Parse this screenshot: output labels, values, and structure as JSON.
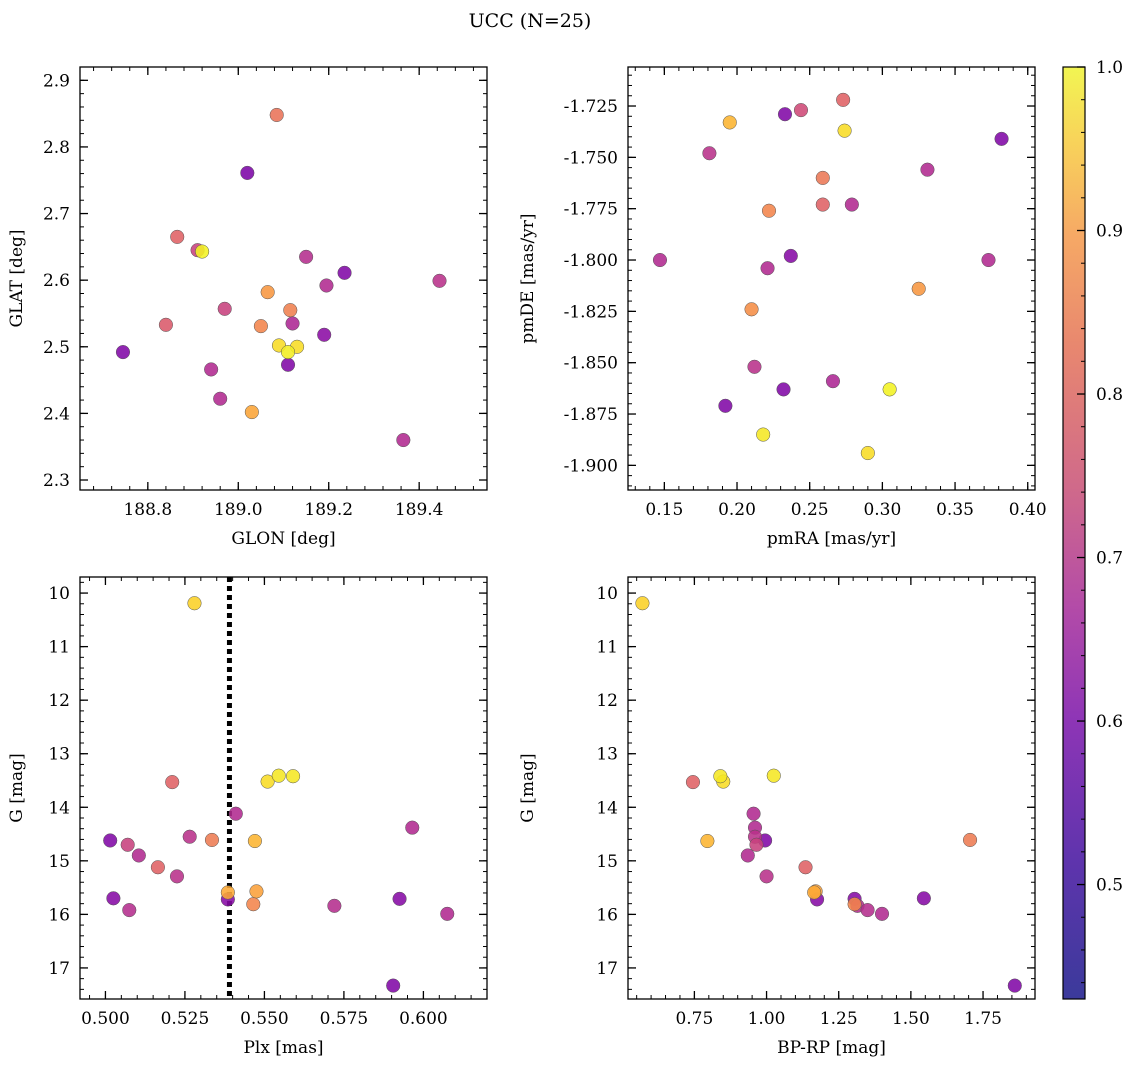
{
  "title": "UCC (N=25)",
  "colors": {
    "colormap": "plasma",
    "point_edge": "#555555",
    "vline": "#000000"
  },
  "colorbar": {
    "min": 0.43,
    "max": 1.0,
    "ticks": [
      "0.5",
      "0.6",
      "0.7",
      "0.8",
      "0.9",
      "1.0"
    ]
  },
  "chart_data": [
    {
      "type": "scatter",
      "xlabel": "GLON [deg]",
      "ylabel": "GLAT [deg]",
      "xlim": [
        188.65,
        189.55
      ],
      "ylim": [
        2.285,
        2.92
      ],
      "xticks": [
        "188.8",
        "189.0",
        "189.2",
        "189.4"
      ],
      "yticks": [
        "2.3",
        "2.4",
        "2.5",
        "2.6",
        "2.7",
        "2.8",
        "2.9"
      ],
      "invert_y": false,
      "points": [
        {
          "x": 188.745,
          "y": 2.492,
          "c": 0.46
        },
        {
          "x": 188.84,
          "y": 2.533,
          "c": 0.68
        },
        {
          "x": 188.865,
          "y": 2.665,
          "c": 0.7
        },
        {
          "x": 188.91,
          "y": 2.645,
          "c": 0.62
        },
        {
          "x": 188.92,
          "y": 2.643,
          "c": 0.99
        },
        {
          "x": 188.94,
          "y": 2.466,
          "c": 0.56
        },
        {
          "x": 188.96,
          "y": 2.422,
          "c": 0.56
        },
        {
          "x": 188.97,
          "y": 2.557,
          "c": 0.62
        },
        {
          "x": 189.02,
          "y": 2.761,
          "c": 0.45
        },
        {
          "x": 189.03,
          "y": 2.402,
          "c": 0.85
        },
        {
          "x": 189.05,
          "y": 2.531,
          "c": 0.78
        },
        {
          "x": 189.065,
          "y": 2.582,
          "c": 0.82
        },
        {
          "x": 189.085,
          "y": 2.848,
          "c": 0.74
        },
        {
          "x": 189.09,
          "y": 2.502,
          "c": 0.95
        },
        {
          "x": 189.11,
          "y": 2.492,
          "c": 0.98
        },
        {
          "x": 189.11,
          "y": 2.473,
          "c": 0.46
        },
        {
          "x": 189.115,
          "y": 2.555,
          "c": 0.77
        },
        {
          "x": 189.12,
          "y": 2.535,
          "c": 0.55
        },
        {
          "x": 189.13,
          "y": 2.5,
          "c": 0.95
        },
        {
          "x": 189.15,
          "y": 2.635,
          "c": 0.57
        },
        {
          "x": 189.19,
          "y": 2.518,
          "c": 0.48
        },
        {
          "x": 189.195,
          "y": 2.592,
          "c": 0.56
        },
        {
          "x": 189.235,
          "y": 2.611,
          "c": 0.46
        },
        {
          "x": 189.365,
          "y": 2.36,
          "c": 0.56
        },
        {
          "x": 189.445,
          "y": 2.599,
          "c": 0.58
        }
      ]
    },
    {
      "type": "scatter",
      "xlabel": "pmRA [mas/yr]",
      "ylabel": "pmDE [mas/yr]",
      "xlim": [
        0.125,
        0.405
      ],
      "ylim": [
        -1.912,
        -1.706
      ],
      "xticks": [
        "0.15",
        "0.20",
        "0.25",
        "0.30",
        "0.35",
        "0.40"
      ],
      "yticks": [
        "-1.725",
        "-1.750",
        "-1.775",
        "-1.800",
        "-1.825",
        "-1.850",
        "-1.875",
        "-1.900"
      ],
      "invert_y": false,
      "points": [
        {
          "x": 0.147,
          "y": -1.8,
          "c": 0.56
        },
        {
          "x": 0.181,
          "y": -1.748,
          "c": 0.58
        },
        {
          "x": 0.192,
          "y": -1.871,
          "c": 0.46
        },
        {
          "x": 0.195,
          "y": -1.733,
          "c": 0.88
        },
        {
          "x": 0.21,
          "y": -1.824,
          "c": 0.8
        },
        {
          "x": 0.212,
          "y": -1.852,
          "c": 0.58
        },
        {
          "x": 0.218,
          "y": -1.885,
          "c": 0.97
        },
        {
          "x": 0.221,
          "y": -1.804,
          "c": 0.56
        },
        {
          "x": 0.222,
          "y": -1.776,
          "c": 0.78
        },
        {
          "x": 0.232,
          "y": -1.863,
          "c": 0.46
        },
        {
          "x": 0.233,
          "y": -1.729,
          "c": 0.46
        },
        {
          "x": 0.237,
          "y": -1.798,
          "c": 0.47
        },
        {
          "x": 0.244,
          "y": -1.727,
          "c": 0.64
        },
        {
          "x": 0.259,
          "y": -1.76,
          "c": 0.75
        },
        {
          "x": 0.259,
          "y": -1.773,
          "c": 0.7
        },
        {
          "x": 0.266,
          "y": -1.859,
          "c": 0.55
        },
        {
          "x": 0.273,
          "y": -1.722,
          "c": 0.7
        },
        {
          "x": 0.274,
          "y": -1.737,
          "c": 0.95
        },
        {
          "x": 0.279,
          "y": -1.773,
          "c": 0.56
        },
        {
          "x": 0.29,
          "y": -1.894,
          "c": 0.95
        },
        {
          "x": 0.305,
          "y": -1.863,
          "c": 0.99
        },
        {
          "x": 0.325,
          "y": -1.814,
          "c": 0.82
        },
        {
          "x": 0.331,
          "y": -1.756,
          "c": 0.56
        },
        {
          "x": 0.373,
          "y": -1.8,
          "c": 0.56
        },
        {
          "x": 0.382,
          "y": -1.741,
          "c": 0.46
        }
      ]
    },
    {
      "type": "scatter",
      "xlabel": "Plx [mas]",
      "ylabel": "G [mag]",
      "xlim": [
        0.492,
        0.62
      ],
      "ylim": [
        9.7,
        17.58
      ],
      "xticks": [
        "0.500",
        "0.525",
        "0.550",
        "0.575",
        "0.600"
      ],
      "yticks": [
        "10",
        "11",
        "12",
        "13",
        "14",
        "15",
        "16",
        "17"
      ],
      "invert_y": true,
      "vline": {
        "x": 0.539,
        "style": "dotted"
      },
      "points": [
        {
          "x": 0.5015,
          "y": 14.62,
          "c": 0.46
        },
        {
          "x": 0.5025,
          "y": 15.7,
          "c": 0.47
        },
        {
          "x": 0.507,
          "y": 14.7,
          "c": 0.62
        },
        {
          "x": 0.5075,
          "y": 15.92,
          "c": 0.57
        },
        {
          "x": 0.5105,
          "y": 14.9,
          "c": 0.56
        },
        {
          "x": 0.5165,
          "y": 15.12,
          "c": 0.7
        },
        {
          "x": 0.521,
          "y": 13.53,
          "c": 0.7
        },
        {
          "x": 0.5225,
          "y": 15.29,
          "c": 0.58
        },
        {
          "x": 0.5265,
          "y": 14.55,
          "c": 0.58
        },
        {
          "x": 0.528,
          "y": 10.19,
          "c": 0.93
        },
        {
          "x": 0.5335,
          "y": 14.61,
          "c": 0.76
        },
        {
          "x": 0.5385,
          "y": 15.72,
          "c": 0.47
        },
        {
          "x": 0.5385,
          "y": 15.59,
          "c": 0.86
        },
        {
          "x": 0.541,
          "y": 14.12,
          "c": 0.56
        },
        {
          "x": 0.5465,
          "y": 15.81,
          "c": 0.78
        },
        {
          "x": 0.547,
          "y": 14.63,
          "c": 0.88
        },
        {
          "x": 0.5475,
          "y": 15.57,
          "c": 0.84
        },
        {
          "x": 0.551,
          "y": 13.52,
          "c": 0.95
        },
        {
          "x": 0.5545,
          "y": 13.41,
          "c": 0.97
        },
        {
          "x": 0.559,
          "y": 13.42,
          "c": 0.97
        },
        {
          "x": 0.572,
          "y": 15.84,
          "c": 0.57
        },
        {
          "x": 0.5905,
          "y": 17.33,
          "c": 0.46
        },
        {
          "x": 0.5925,
          "y": 15.71,
          "c": 0.47
        },
        {
          "x": 0.5965,
          "y": 14.38,
          "c": 0.56
        },
        {
          "x": 0.6075,
          "y": 15.99,
          "c": 0.56
        }
      ]
    },
    {
      "type": "scatter",
      "xlabel": "BP-RP [mag]",
      "ylabel": "G [mag]",
      "xlim": [
        0.52,
        1.93
      ],
      "ylim": [
        9.7,
        17.58
      ],
      "xticks": [
        "0.75",
        "1.00",
        "1.25",
        "1.50",
        "1.75"
      ],
      "yticks": [
        "10",
        "11",
        "12",
        "13",
        "14",
        "15",
        "16",
        "17"
      ],
      "invert_y": true,
      "points": [
        {
          "x": 0.57,
          "y": 10.19,
          "c": 0.93
        },
        {
          "x": 0.745,
          "y": 13.53,
          "c": 0.7
        },
        {
          "x": 0.795,
          "y": 14.63,
          "c": 0.88
        },
        {
          "x": 0.84,
          "y": 13.42,
          "c": 0.97
        },
        {
          "x": 0.85,
          "y": 13.52,
          "c": 0.95
        },
        {
          "x": 0.935,
          "y": 14.9,
          "c": 0.56
        },
        {
          "x": 0.955,
          "y": 14.12,
          "c": 0.56
        },
        {
          "x": 0.96,
          "y": 14.38,
          "c": 0.56
        },
        {
          "x": 0.96,
          "y": 14.55,
          "c": 0.58
        },
        {
          "x": 0.965,
          "y": 14.7,
          "c": 0.62
        },
        {
          "x": 0.995,
          "y": 14.62,
          "c": 0.46
        },
        {
          "x": 1.0,
          "y": 15.29,
          "c": 0.58
        },
        {
          "x": 1.025,
          "y": 13.41,
          "c": 0.97
        },
        {
          "x": 1.135,
          "y": 15.12,
          "c": 0.7
        },
        {
          "x": 1.165,
          "y": 15.59,
          "c": 0.86
        },
        {
          "x": 1.17,
          "y": 15.57,
          "c": 0.84
        },
        {
          "x": 1.175,
          "y": 15.72,
          "c": 0.47
        },
        {
          "x": 1.305,
          "y": 15.71,
          "c": 0.47
        },
        {
          "x": 1.305,
          "y": 15.81,
          "c": 0.78
        },
        {
          "x": 1.315,
          "y": 15.84,
          "c": 0.57
        },
        {
          "x": 1.35,
          "y": 15.92,
          "c": 0.57
        },
        {
          "x": 1.4,
          "y": 15.99,
          "c": 0.56
        },
        {
          "x": 1.545,
          "y": 15.7,
          "c": 0.47
        },
        {
          "x": 1.705,
          "y": 14.61,
          "c": 0.76
        },
        {
          "x": 1.86,
          "y": 17.33,
          "c": 0.46
        }
      ]
    }
  ]
}
